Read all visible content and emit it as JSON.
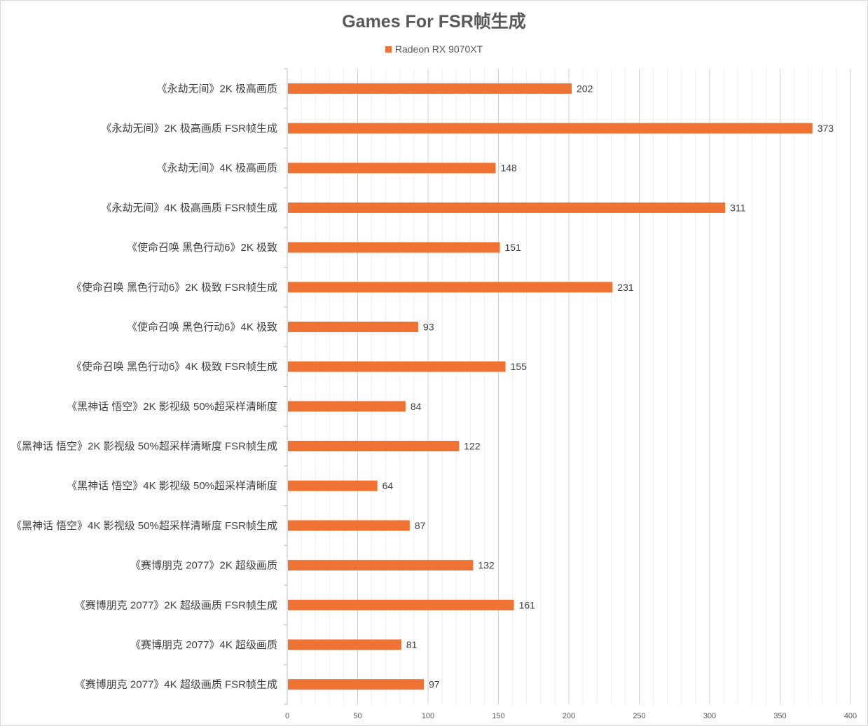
{
  "chart_data": {
    "type": "bar",
    "orientation": "horizontal",
    "title": "Games For FSR帧生成",
    "xlabel": "",
    "ylabel": "",
    "xlim": [
      0,
      400
    ],
    "x_ticks": [
      0,
      50,
      100,
      150,
      200,
      250,
      300,
      350,
      400
    ],
    "grid": true,
    "legend_position": "top",
    "bar_color": "#ED7233",
    "categories": [
      "《永劫无间》2K 极高画质",
      "《永劫无间》2K 极高画质 FSR帧生成",
      "《永劫无间》4K 极高画质",
      "《永劫无间》4K 极高画质 FSR帧生成",
      "《使命召唤 黑色行动6》2K 极致",
      "《使命召唤 黑色行动6》2K 极致 FSR帧生成",
      "《使命召唤 黑色行动6》4K 极致",
      "《使命召唤 黑色行动6》4K 极致 FSR帧生成",
      "《黑神话 悟空》2K 影视级 50%超采样清晰度",
      "《黑神话 悟空》2K 影视级 50%超采样清晰度 FSR帧生成",
      "《黑神话 悟空》4K 影视级 50%超采样清晰度",
      "《黑神话 悟空》4K 影视级 50%超采样清晰度 FSR帧生成",
      "《赛博朋克 2077》2K 超级画质",
      "《赛博朋克 2077》2K 超级画质 FSR帧生成",
      "《赛博朋克 2077》4K 超级画质",
      "《赛博朋克 2077》4K 超级画质 FSR帧生成"
    ],
    "series": [
      {
        "name": "Radeon RX 9070XT",
        "values": [
          202,
          373,
          148,
          311,
          151,
          231,
          93,
          155,
          84,
          122,
          64,
          87,
          132,
          161,
          81,
          97
        ]
      }
    ]
  }
}
